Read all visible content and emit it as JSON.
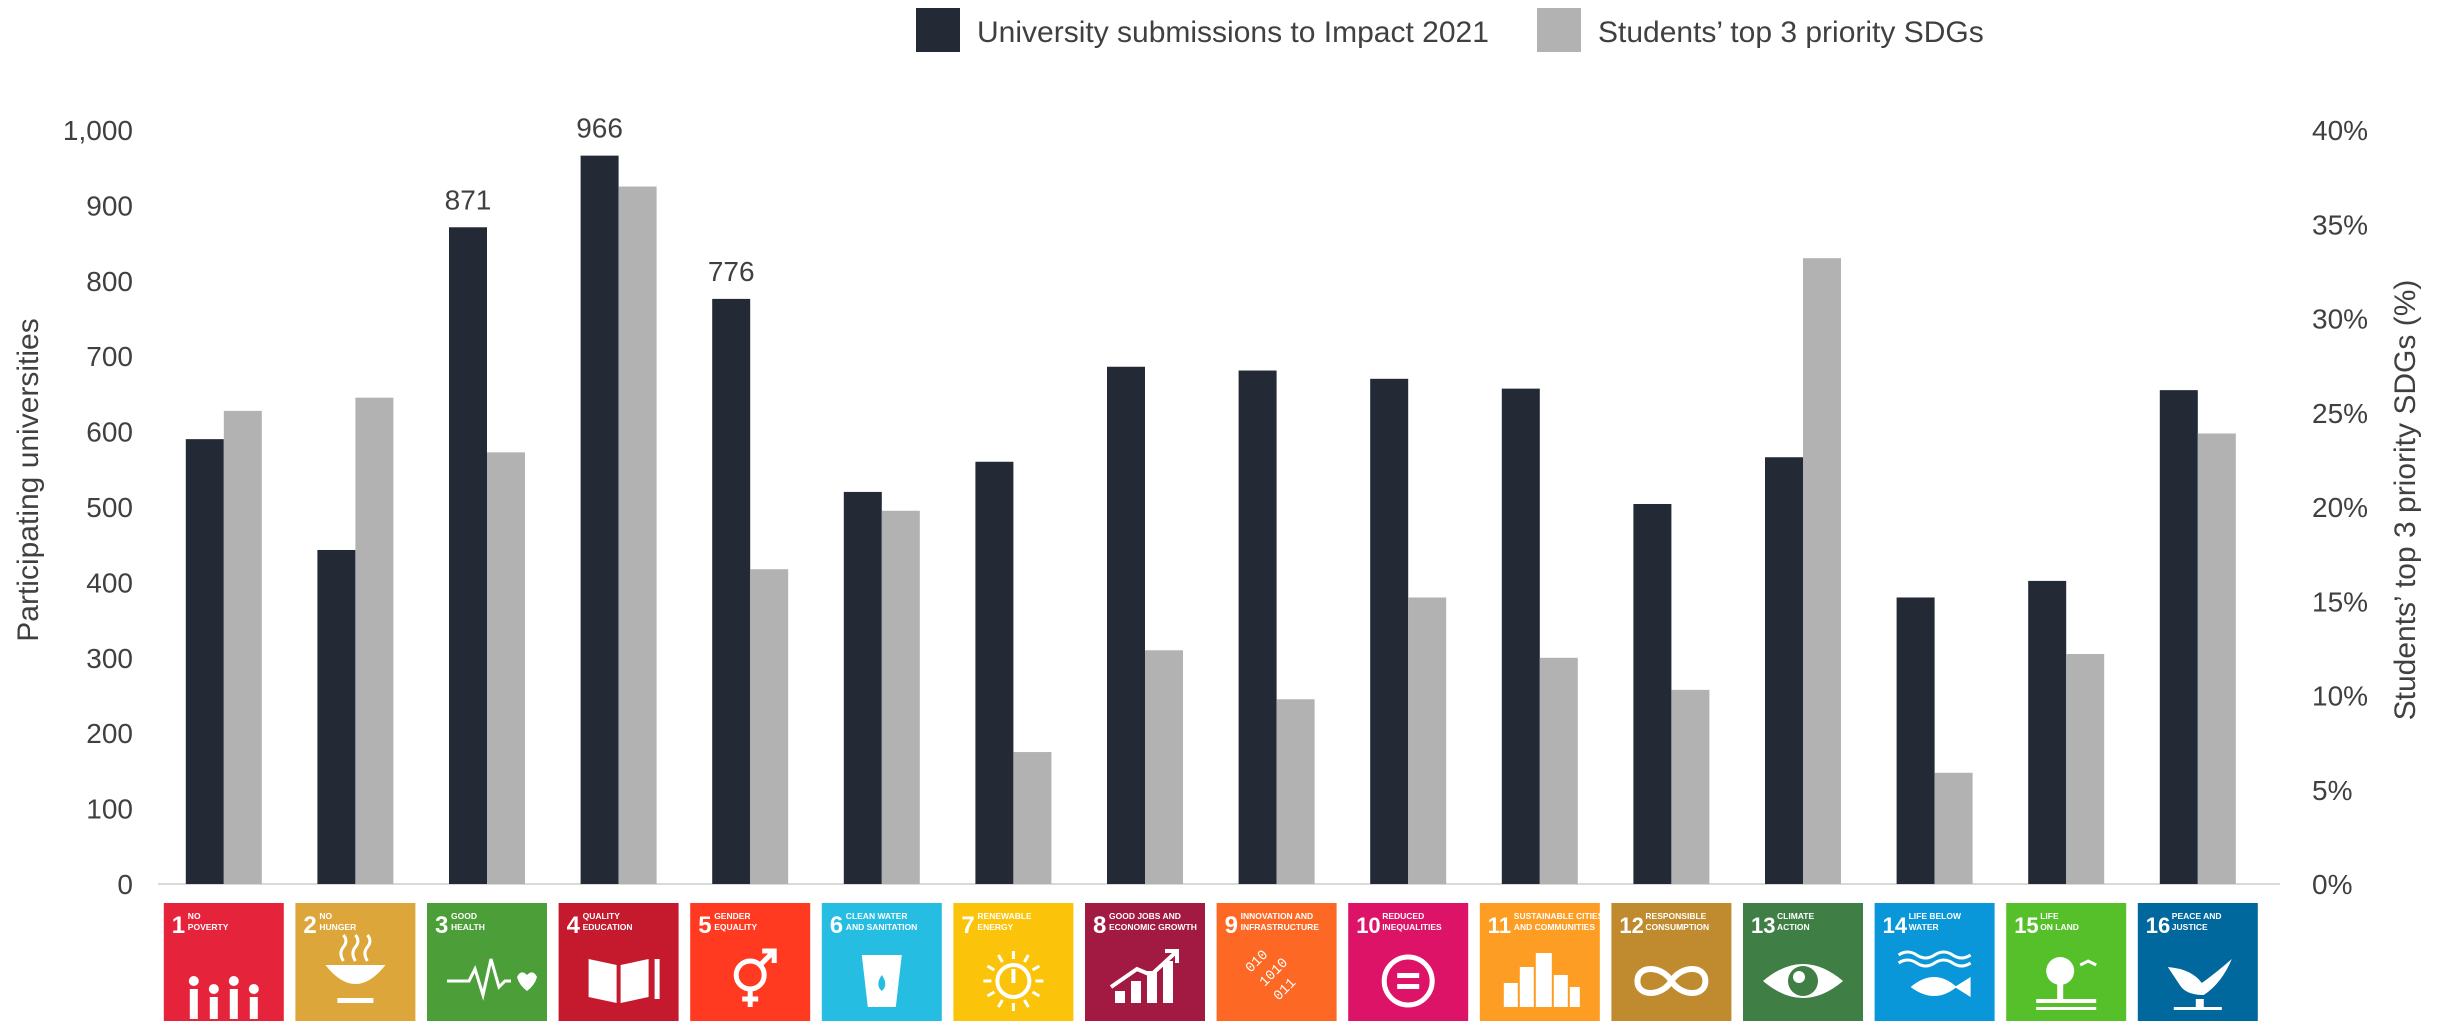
{
  "chart_data": {
    "type": "bar",
    "categories": [
      "1",
      "2",
      "3",
      "4",
      "5",
      "6",
      "7",
      "8",
      "9",
      "10",
      "11",
      "12",
      "13",
      "14",
      "15",
      "16"
    ],
    "series": [
      {
        "name": "University submissions to Impact 2021",
        "axis": "left",
        "color": "#232a36",
        "values": [
          590,
          443,
          871,
          966,
          776,
          520,
          560,
          686,
          681,
          670,
          657,
          504,
          566,
          380,
          402,
          655
        ]
      },
      {
        "name": "Students’ top 3 priority SDGs",
        "axis": "right",
        "color": "#b2b2b2",
        "values": [
          25.1,
          25.8,
          22.9,
          37.0,
          16.7,
          19.8,
          7.0,
          12.4,
          9.8,
          15.2,
          12.0,
          10.3,
          33.2,
          5.9,
          12.2,
          23.9
        ]
      }
    ],
    "data_labels": [
      {
        "category": "3",
        "text": "871"
      },
      {
        "category": "4",
        "text": "966"
      },
      {
        "category": "5",
        "text": "776"
      }
    ],
    "ylabel": "Participating universities",
    "y2label": "Students’ top 3 priority SDGs (%)",
    "ylim": [
      0,
      1000
    ],
    "y2lim": [
      0,
      40
    ],
    "yticks": [
      "0",
      "100",
      "200",
      "300",
      "400",
      "500",
      "600",
      "700",
      "800",
      "900",
      "1,000"
    ],
    "y2ticks": [
      "0%",
      "5%",
      "10%",
      "15%",
      "20%",
      "25%",
      "30%",
      "35%",
      "40%"
    ],
    "legend_position": "top-center",
    "grid": false,
    "sdg_tiles": [
      {
        "number": "1",
        "lines": [
          "NO",
          "POVERTY"
        ],
        "color": "#e5243b",
        "icon": "family-icon"
      },
      {
        "number": "2",
        "lines": [
          "NO",
          "HUNGER"
        ],
        "color": "#dda63a",
        "icon": "bowl-icon"
      },
      {
        "number": "3",
        "lines": [
          "GOOD",
          "HEALTH"
        ],
        "color": "#4c9f38",
        "icon": "heartbeat-icon"
      },
      {
        "number": "4",
        "lines": [
          "QUALITY",
          "EDUCATION"
        ],
        "color": "#c5192d",
        "icon": "book-icon"
      },
      {
        "number": "5",
        "lines": [
          "GENDER",
          "EQUALITY"
        ],
        "color": "#ff3a21",
        "icon": "gender-icon"
      },
      {
        "number": "6",
        "lines": [
          "CLEAN WATER",
          "AND SANITATION"
        ],
        "color": "#26bde2",
        "icon": "water-glass-icon"
      },
      {
        "number": "7",
        "lines": [
          "RENEWABLE",
          "ENERGY"
        ],
        "color": "#fcc30b",
        "icon": "sun-power-icon"
      },
      {
        "number": "8",
        "lines": [
          "GOOD JOBS AND",
          "ECONOMIC GROWTH"
        ],
        "color": "#a21942",
        "icon": "growth-chart-icon"
      },
      {
        "number": "9",
        "lines": [
          "INNOVATION AND",
          "INFRASTRUCTURE"
        ],
        "color": "#fd6925",
        "icon": "binary-icon"
      },
      {
        "number": "10",
        "lines": [
          "REDUCED",
          "INEQUALITIES"
        ],
        "color": "#dd1367",
        "icon": "equals-icon"
      },
      {
        "number": "11",
        "lines": [
          "SUSTAINABLE CITIES",
          "AND COMMUNITIES"
        ],
        "color": "#fd9d24",
        "icon": "city-icon"
      },
      {
        "number": "12",
        "lines": [
          "RESPONSIBLE",
          "CONSUMPTION"
        ],
        "color": "#bf8b2e",
        "icon": "infinity-icon"
      },
      {
        "number": "13",
        "lines": [
          "CLIMATE",
          "ACTION"
        ],
        "color": "#3f7e44",
        "icon": "eye-globe-icon"
      },
      {
        "number": "14",
        "lines": [
          "LIFE BELOW",
          "WATER"
        ],
        "color": "#0a97d9",
        "icon": "fish-icon"
      },
      {
        "number": "15",
        "lines": [
          "LIFE",
          "ON LAND"
        ],
        "color": "#56c02b",
        "icon": "tree-icon"
      },
      {
        "number": "16",
        "lines": [
          "PEACE AND",
          "JUSTICE"
        ],
        "color": "#00689d",
        "icon": "dove-icon"
      }
    ]
  }
}
